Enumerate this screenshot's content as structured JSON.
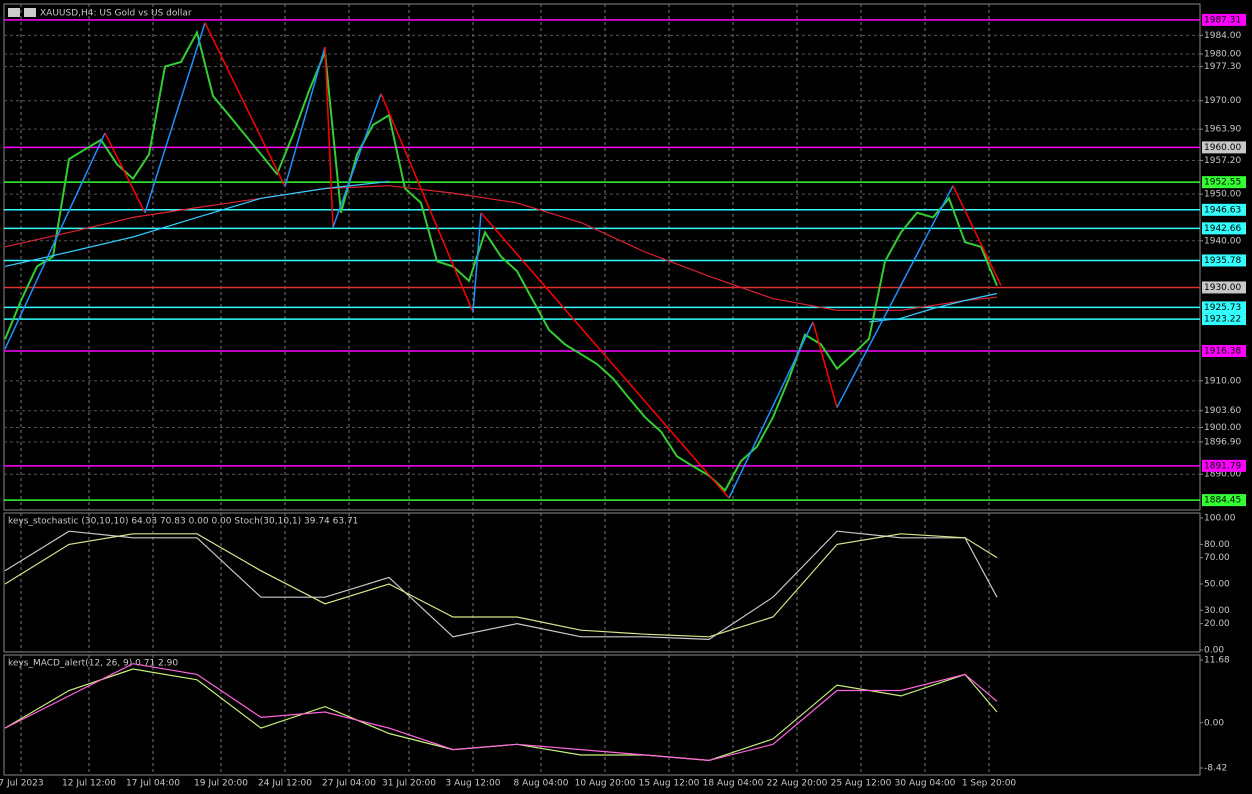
{
  "header": {
    "title": "XAUUSD,H4: US Gold vs US dollar"
  },
  "chart_data": [
    {
      "type": "line",
      "xlim": [
        0,
        250
      ],
      "ylim": [
        1883.4,
        1989.0
      ],
      "xticks": [
        {
          "value": 4,
          "label": "7 Jul 2023"
        },
        {
          "value": 21,
          "label": "12 Jul 12:00"
        },
        {
          "value": 37,
          "label": "17 Jul 04:00"
        },
        {
          "value": 54,
          "label": "19 Jul 20:00"
        },
        {
          "value": 70,
          "label": "24 Jul 12:00"
        },
        {
          "value": 86,
          "label": "27 Jul 04:00"
        },
        {
          "value": 101,
          "label": "31 Jul 20:00"
        },
        {
          "value": 117,
          "label": "3 Aug 12:00"
        },
        {
          "value": 134,
          "label": "8 Aug 04:00"
        },
        {
          "value": 150,
          "label": "10 Aug 20:00"
        },
        {
          "value": 166,
          "label": "15 Aug 12:00"
        },
        {
          "value": 182,
          "label": "18 Aug 04:00"
        },
        {
          "value": 198,
          "label": "22 Aug 20:00"
        },
        {
          "value": 214,
          "label": "25 Aug 12:00"
        },
        {
          "value": 230,
          "label": "30 Aug 04:00"
        },
        {
          "value": 246,
          "label": "1 Sep 20:00"
        }
      ],
      "yticks": [
        {
          "value": 1984,
          "label": "1984.00"
        },
        {
          "value": 1980,
          "label": "1980.00"
        },
        {
          "value": 1977.3,
          "label": "1977.30"
        },
        {
          "value": 1970,
          "label": "1970.00"
        },
        {
          "value": 1963.9,
          "label": "1963.90"
        },
        {
          "value": 1957.2,
          "label": "1957.20"
        },
        {
          "value": 1950,
          "label": "1950.00"
        },
        {
          "value": 1940,
          "label": "1940.00"
        },
        {
          "value": 1910,
          "label": "1910.00"
        },
        {
          "value": 1903.6,
          "label": "1903.60"
        },
        {
          "value": 1900,
          "label": "1900.00"
        },
        {
          "value": 1896.9,
          "label": "1896.90"
        },
        {
          "value": 1890,
          "label": "1890.00"
        }
      ],
      "grid": true,
      "series": [
        {
          "color": "#33cc33",
          "x": [
            0,
            4,
            8,
            12,
            16,
            20,
            24,
            28,
            32,
            36,
            40,
            44,
            48,
            52,
            56,
            60,
            64,
            68,
            72,
            76,
            80,
            84,
            88,
            92,
            96,
            100,
            104,
            108,
            112,
            116,
            120,
            124,
            128,
            132,
            136,
            140,
            144,
            148,
            152,
            156,
            160,
            164,
            168,
            172,
            176,
            180,
            184,
            188,
            192,
            196,
            200,
            204,
            208,
            212,
            216,
            220,
            224,
            228,
            232,
            236,
            240,
            244,
            248
          ],
          "values": [
            1918.9,
            1927.2,
            1934.5,
            1936.6,
            1957.5,
            1959.6,
            1961.6,
            1956.4,
            1953.3,
            1958.5,
            1977.3,
            1978.3,
            1984.6,
            1971.0,
            1966.9,
            1962.7,
            1958.5,
            1954.3,
            1962.7,
            1972.1,
            1980.4,
            1946.0,
            1958.5,
            1964.8,
            1966.9,
            1951.2,
            1948.1,
            1935.6,
            1934.5,
            1931.4,
            1941.8,
            1936.6,
            1933.5,
            1927.2,
            1920.9,
            1917.8,
            1915.7,
            1913.6,
            1910.5,
            1906.3,
            1902.2,
            1899.1,
            1893.8,
            1891.7,
            1889.7,
            1886.5,
            1892.8,
            1895.9,
            1902.2,
            1910.5,
            1919.9,
            1917.8,
            1912.6,
            1915.7,
            1919.0,
            1935.6,
            1941.8,
            1946.0,
            1945.0,
            1949.1,
            1939.7,
            1938.7,
            1930.4
          ]
        },
        {
          "color": "#dd2233",
          "x": [
            0,
            16,
            32,
            48,
            64,
            80,
            96,
            112,
            128,
            144,
            160,
            176,
            192,
            208,
            224,
            240,
            248
          ],
          "values": [
            1938.7,
            1941.8,
            1945.0,
            1947.1,
            1949.1,
            1951.2,
            1951.8,
            1950.2,
            1948.1,
            1943.9,
            1937.6,
            1932.4,
            1927.6,
            1925.1,
            1925.1,
            1927.2,
            1927.9
          ]
        },
        {
          "color": "#33ccff",
          "x": [
            0,
            16,
            32,
            48,
            64,
            80,
            96,
            112,
            128,
            144,
            160,
            176,
            192,
            208,
            216,
            224,
            232,
            240,
            248
          ],
          "values": [
            1934.5,
            1937.6,
            1940.8,
            1945.0,
            1949.1,
            1951.2,
            1952.7,
            null,
            null,
            null,
            null,
            null,
            null,
            null,
            1922.6,
            1923.4,
            1925.5,
            1927.2,
            1928.7
          ]
        }
      ],
      "zigzag": {
        "up_color": "#1e90ff",
        "down_color": "#ff0000",
        "x": [
          0,
          25,
          35,
          50,
          70,
          80,
          82,
          94,
          117,
          119,
          181,
          202,
          208,
          237,
          249
        ],
        "values": [
          1916.8,
          1963.1,
          1946.0,
          1986.7,
          1951.6,
          1981.5,
          1942.9,
          1971.5,
          1924.7,
          1946.0,
          1884.9,
          1922.6,
          1904.3,
          1951.8,
          1930.4
        ]
      },
      "levels": [
        {
          "value": 1987.31,
          "color": "#ff00ff"
        },
        {
          "value": 1960,
          "label": "1960.00",
          "color": "#ff00ff",
          "label_color": "#c8c8c8"
        },
        {
          "value": 1952.55,
          "color": "#33ff33"
        },
        {
          "value": 1946.63,
          "color": "#33ffff"
        },
        {
          "value": 1942.66,
          "color": "#33ffff"
        },
        {
          "value": 1935.78,
          "color": "#33ffff"
        },
        {
          "value": 1930,
          "label": "1930.00",
          "color": "#dd3333",
          "label_color": "#c8c8c8"
        },
        {
          "value": 1925.73,
          "color": "#33ffff"
        },
        {
          "value": 1923.22,
          "color": "#33ffff"
        },
        {
          "value": 1916.38,
          "color": "#ff00ff"
        },
        {
          "value": 1891.79,
          "color": "#ff00ff"
        },
        {
          "value": 1884.45,
          "color": "#33ff33"
        }
      ]
    },
    {
      "type": "line",
      "title": "keys_stochastic (30,10,10) 64.03 70.83 0.00 0.00 Stoch(30,10,1) 39.74 63.71",
      "xlim": [
        0,
        250
      ],
      "ylim": [
        0,
        100
      ],
      "yticks": [
        {
          "value": 100,
          "label": "100.00"
        },
        {
          "value": 80,
          "label": "80.00"
        },
        {
          "value": 70,
          "label": "70.00"
        },
        {
          "value": 50,
          "label": "50.00"
        },
        {
          "value": 30,
          "label": "30.00"
        },
        {
          "value": 20,
          "label": "20.00"
        },
        {
          "value": 0,
          "label": "0.00"
        }
      ],
      "series": [
        {
          "color": "#c8c8c8",
          "x": [
            0,
            16,
            32,
            48,
            64,
            80,
            96,
            112,
            128,
            144,
            160,
            176,
            192,
            208,
            224,
            240,
            248
          ],
          "values": [
            60,
            90,
            85,
            85,
            40,
            40,
            55,
            10,
            20,
            10,
            10,
            8,
            40,
            90,
            85,
            85,
            40
          ]
        },
        {
          "color": "#d6e68a",
          "x": [
            0,
            16,
            32,
            48,
            64,
            80,
            96,
            112,
            128,
            144,
            160,
            176,
            192,
            208,
            224,
            240,
            248
          ],
          "values": [
            50,
            80,
            88,
            88,
            60,
            35,
            50,
            25,
            25,
            15,
            12,
            10,
            25,
            80,
            88,
            85,
            70
          ]
        }
      ]
    },
    {
      "type": "line",
      "title": "keys_MACD_alert(12, 26, 9) 0.71 2.90",
      "xlim": [
        0,
        250
      ],
      "ylim": [
        -8.42,
        11.68
      ],
      "yticks": [
        11.68,
        {
          "value": 0,
          "label": "0.00"
        },
        -8.42
      ],
      "series": [
        {
          "color": "#c8f07a",
          "x": [
            0,
            16,
            32,
            48,
            64,
            80,
            96,
            112,
            128,
            144,
            160,
            176,
            192,
            208,
            224,
            240,
            248
          ],
          "values": [
            -1,
            6,
            10,
            8,
            -1,
            3,
            -2,
            -5,
            -4,
            -6,
            -6,
            -7,
            -3,
            7,
            5,
            9,
            2
          ]
        },
        {
          "color": "#ff66dd",
          "x": [
            0,
            16,
            32,
            48,
            64,
            80,
            96,
            112,
            128,
            144,
            160,
            176,
            192,
            208,
            224,
            240,
            248
          ],
          "values": [
            -1,
            5,
            11,
            9,
            1,
            2,
            -1,
            -5,
            -4,
            -5,
            -6,
            -7,
            -4,
            6,
            6,
            9,
            4
          ]
        }
      ]
    }
  ]
}
